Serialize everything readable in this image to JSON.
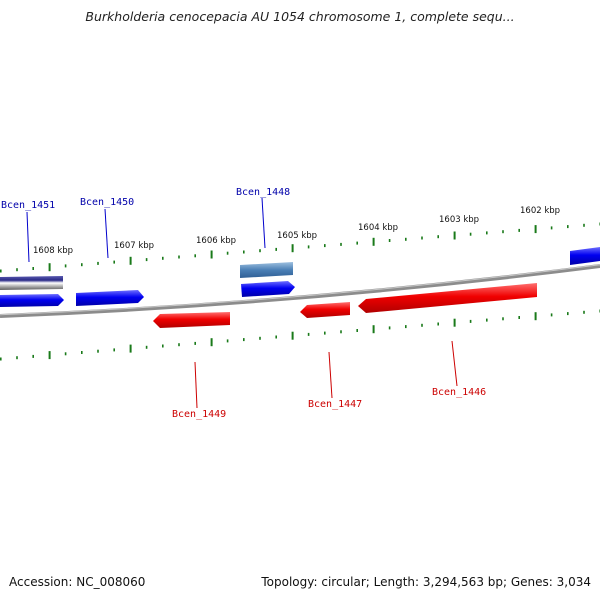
{
  "header": {
    "title": "Burkholderia cenocepacia AU 1054 chromosome 1, complete sequ..."
  },
  "footer": {
    "accession": "Accession: NC_008060",
    "summary": "Topology: circular; Length: 3,294,563 bp; Genes: 3,034"
  },
  "colors": {
    "forward_gene": "#0000ee",
    "forward_gene_alt": "#4a7fb5",
    "reverse_gene": "#ee0000",
    "tick": "#1a7a1a",
    "backbone": "#808080",
    "forward_label": "#0000aa",
    "reverse_label": "#cc0000"
  },
  "scale_labels": [
    "1608 kbp",
    "1607 kbp",
    "1606 kbp",
    "1605 kbp",
    "1604 kbp",
    "1603 kbp",
    "1602 kbp"
  ],
  "genes": {
    "forward": [
      {
        "label": "Bcen_1451"
      },
      {
        "label": "Bcen_1450"
      },
      {
        "label": "Bcen_1448"
      }
    ],
    "reverse": [
      {
        "label": "Bcen_1449"
      },
      {
        "label": "Bcen_1447"
      },
      {
        "label": "Bcen_1446"
      }
    ]
  }
}
